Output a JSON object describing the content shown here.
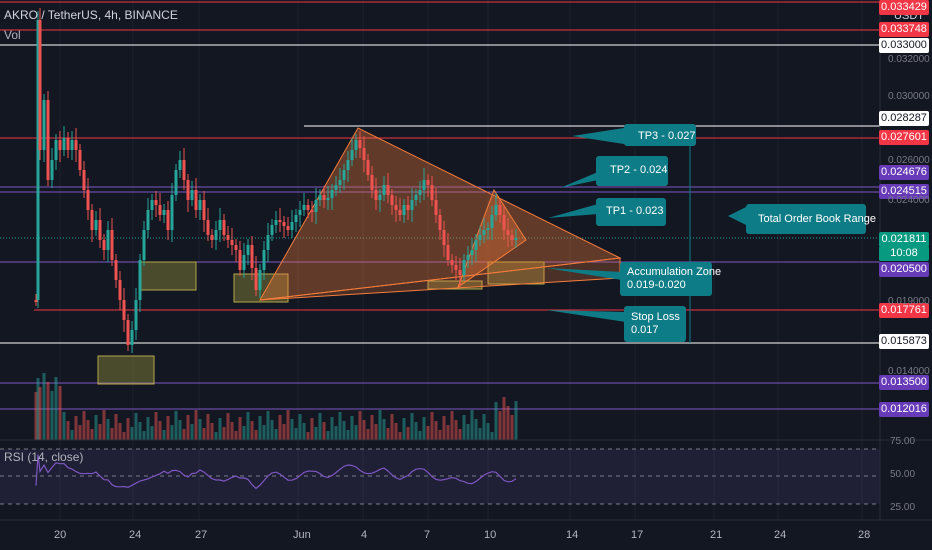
{
  "header": {
    "symbol_line": "AKRO / TetherUS, 4h, BINANCE",
    "volume_label": "Vol",
    "currency": "USDT"
  },
  "rsi": {
    "label": "RSI (14, close)",
    "levels": [
      "75.00",
      "50.00",
      "25.00"
    ]
  },
  "price_badges": [
    {
      "text": "0.033429",
      "bg": "#f23645",
      "fg": "#ffffff"
    },
    {
      "text": "0.033748",
      "bg": "#f23645",
      "fg": "#ffffff"
    },
    {
      "text": "0.033000",
      "bg": "#ffffff",
      "fg": "#131722"
    },
    {
      "text": "0.028287",
      "bg": "#ffffff",
      "fg": "#131722"
    },
    {
      "text": "0.027601",
      "bg": "#f23645",
      "fg": "#ffffff"
    },
    {
      "text": "0.024676",
      "bg": "#673ab7",
      "fg": "#ffffff"
    },
    {
      "text": "0.024515",
      "bg": "#673ab7",
      "fg": "#ffffff"
    },
    {
      "text": "0.021811",
      "bg": "#089981",
      "fg": "#ffffff"
    },
    {
      "text": "10:08",
      "bg": "#089981",
      "fg": "#ffffff"
    },
    {
      "text": "0.020500",
      "bg": "#673ab7",
      "fg": "#ffffff"
    },
    {
      "text": "0.017761",
      "bg": "#f23645",
      "fg": "#ffffff"
    },
    {
      "text": "0.015873",
      "bg": "#ffffff",
      "fg": "#131722"
    },
    {
      "text": "0.013500",
      "bg": "#673ab7",
      "fg": "#ffffff"
    },
    {
      "text": "0.012016",
      "bg": "#673ab7",
      "fg": "#ffffff"
    }
  ],
  "price_ticks": [
    "0.032000",
    "0.030000",
    "0.026000",
    "0.024000",
    "0.019000",
    "0.014000"
  ],
  "x_ticks": [
    "20",
    "24",
    "27",
    "Jun",
    "4",
    "7",
    "10",
    "14",
    "17",
    "21",
    "24",
    "28"
  ],
  "callouts": {
    "tp3": "TP3 - 0.027",
    "tp2": "TP2 - 0.024",
    "tp1": "TP1 - 0.023",
    "order_book": "Total Order Book Range",
    "accum_line1": "Accumulation Zone",
    "accum_line2": "0.019-0.020",
    "stop_line1": "Stop Loss",
    "stop_line2": "0.017"
  },
  "colors": {
    "background": "#131722",
    "up": "#26a69a",
    "down": "#ef5350",
    "callout": "#0e7c86",
    "pattern": "#f57c3a",
    "rsi_line": "#7e57c2",
    "zone": "#8d8a3a"
  }
}
